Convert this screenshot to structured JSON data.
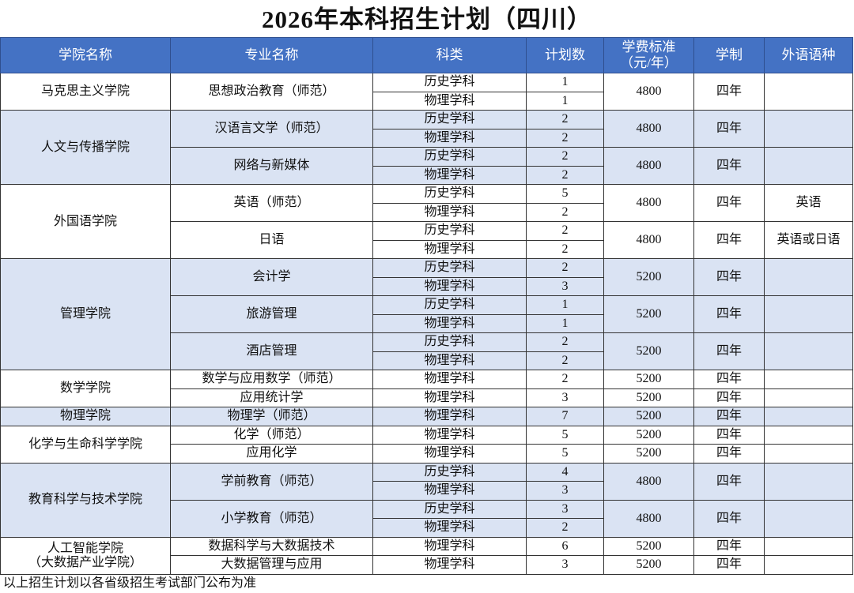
{
  "title": "2026年本科招生计划（四川）",
  "headers": [
    "学院名称",
    "专业名称",
    "科类",
    "计划数",
    "学费标准（元/年）",
    "学制",
    "外语语种"
  ],
  "colleges": [
    {
      "name": "马克思主义学院",
      "majors": [
        {
          "name": "思想政治教育（师范）",
          "fee": 4800,
          "years": "四年",
          "rows": [
            {
              "subject": "历史学科",
              "count": 1
            },
            {
              "subject": "物理学科",
              "count": 1
            }
          ]
        }
      ]
    },
    {
      "name": "人文与传播学院",
      "majors": [
        {
          "name": "汉语言文学（师范）",
          "fee": 4800,
          "years": "四年",
          "rows": [
            {
              "subject": "历史学科",
              "count": 2
            },
            {
              "subject": "物理学科",
              "count": 2
            }
          ]
        },
        {
          "name": "网络与新媒体",
          "fee": 4800,
          "years": "四年",
          "rows": [
            {
              "subject": "历史学科",
              "count": 2
            },
            {
              "subject": "物理学科",
              "count": 2
            }
          ]
        }
      ]
    },
    {
      "name": "外国语学院",
      "majors": [
        {
          "name": "英语（师范）",
          "fee": 4800,
          "years": "四年",
          "language": "英语",
          "rows": [
            {
              "subject": "历史学科",
              "count": 5
            },
            {
              "subject": "物理学科",
              "count": 2
            }
          ]
        },
        {
          "name": "日语",
          "fee": 4800,
          "years": "四年",
          "language": "英语或日语",
          "rows": [
            {
              "subject": "历史学科",
              "count": 2
            },
            {
              "subject": "物理学科",
              "count": 2
            }
          ]
        }
      ]
    },
    {
      "name": "管理学院",
      "majors": [
        {
          "name": "会计学",
          "fee": 5200,
          "years": "四年",
          "rows": [
            {
              "subject": "历史学科",
              "count": 2
            },
            {
              "subject": "物理学科",
              "count": 3
            }
          ]
        },
        {
          "name": "旅游管理",
          "fee": 5200,
          "years": "四年",
          "rows": [
            {
              "subject": "历史学科",
              "count": 1
            },
            {
              "subject": "物理学科",
              "count": 1
            }
          ]
        },
        {
          "name": "酒店管理",
          "fee": 5200,
          "years": "四年",
          "rows": [
            {
              "subject": "历史学科",
              "count": 2
            },
            {
              "subject": "物理学科",
              "count": 2
            }
          ]
        }
      ]
    },
    {
      "name": "数学学院",
      "majors": [
        {
          "name": "数学与应用数学（师范）",
          "fee": 5200,
          "years": "四年",
          "rows": [
            {
              "subject": "物理学科",
              "count": 2
            }
          ]
        },
        {
          "name": "应用统计学",
          "fee": 5200,
          "years": "四年",
          "rows": [
            {
              "subject": "物理学科",
              "count": 3
            }
          ]
        }
      ]
    },
    {
      "name": "物理学院",
      "majors": [
        {
          "name": "物理学（师范）",
          "fee": 5200,
          "years": "四年",
          "rows": [
            {
              "subject": "物理学科",
              "count": 7
            }
          ]
        }
      ]
    },
    {
      "name": "化学与生命科学学院",
      "majors": [
        {
          "name": "化学（师范）",
          "fee": 5200,
          "years": "四年",
          "rows": [
            {
              "subject": "物理学科",
              "count": 5
            }
          ]
        },
        {
          "name": "应用化学",
          "fee": 5200,
          "years": "四年",
          "rows": [
            {
              "subject": "物理学科",
              "count": 5
            }
          ]
        }
      ]
    },
    {
      "name": "教育科学与技术学院",
      "majors": [
        {
          "name": "学前教育（师范）",
          "fee": 4800,
          "years": "四年",
          "rows": [
            {
              "subject": "历史学科",
              "count": 4
            },
            {
              "subject": "物理学科",
              "count": 3
            }
          ]
        },
        {
          "name": "小学教育（师范）",
          "fee": 4800,
          "years": "四年",
          "rows": [
            {
              "subject": "历史学科",
              "count": 3
            },
            {
              "subject": "物理学科",
              "count": 2
            }
          ]
        }
      ]
    },
    {
      "name": "人工智能学院",
      "alt_name": "（大数据产业学院）",
      "majors": [
        {
          "name": "数据科学与大数据技术",
          "fee": 5200,
          "years": "四年",
          "rows": [
            {
              "subject": "物理学科",
              "count": 6
            }
          ]
        },
        {
          "name": "大数据管理与应用",
          "fee": 5200,
          "years": "四年",
          "rows": [
            {
              "subject": "物理学科",
              "count": 3
            }
          ]
        }
      ]
    }
  ],
  "footer": "以上招生计划以各省级招生考试部门公布为准"
}
